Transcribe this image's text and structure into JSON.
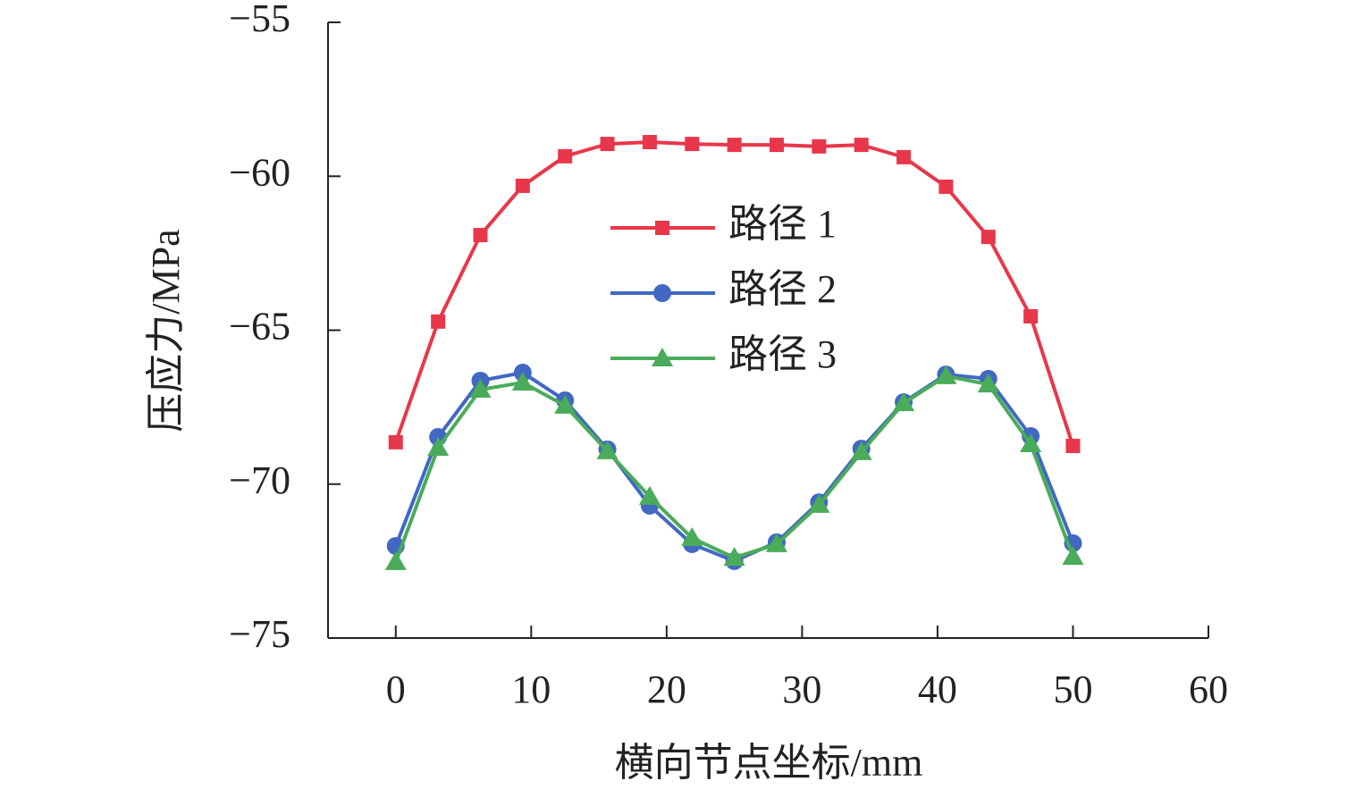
{
  "chart_data": {
    "type": "line",
    "x_label": "横向节点坐标/mm",
    "y_label": "压应力/MPa",
    "x": [
      0,
      3.125,
      6.25,
      9.375,
      12.5,
      15.625,
      18.75,
      21.875,
      25,
      28.125,
      31.25,
      34.375,
      37.5,
      40.625,
      43.75,
      46.875,
      50
    ],
    "series": [
      {
        "name": "路径 1",
        "color": "#e8374a",
        "marker": "square",
        "values": [
          -68.64,
          -64.72,
          -61.91,
          -60.31,
          -59.35,
          -58.95,
          -58.89,
          -58.95,
          -58.98,
          -58.98,
          -59.03,
          -58.98,
          -59.38,
          -60.34,
          -61.97,
          -64.55,
          -68.76
        ]
      },
      {
        "name": "路径 2",
        "color": "#4169c4",
        "marker": "circle",
        "values": [
          -72.01,
          -68.47,
          -66.64,
          -66.38,
          -67.28,
          -68.87,
          -70.7,
          -71.95,
          -72.5,
          -71.89,
          -70.59,
          -68.85,
          -67.34,
          -66.44,
          -66.58,
          -68.44,
          -71.92
        ]
      },
      {
        "name": "路径 3",
        "color": "#4aab5a",
        "marker": "triangle",
        "values": [
          -72.53,
          -68.82,
          -66.93,
          -66.7,
          -67.45,
          -68.93,
          -70.41,
          -71.75,
          -72.39,
          -71.95,
          -70.67,
          -68.96,
          -67.37,
          -66.49,
          -66.76,
          -68.7,
          -72.36
        ]
      }
    ],
    "xlim": [
      -5,
      60
    ],
    "xticks": [
      0,
      10,
      20,
      30,
      40,
      50,
      60
    ],
    "ylim": [
      -75,
      -55
    ],
    "yticks": [
      {
        "value": -75,
        "label": "−75"
      },
      {
        "value": -70,
        "label": "−70"
      },
      {
        "value": -65,
        "label": "−65"
      },
      {
        "value": -60,
        "label": "−60"
      },
      {
        "value": -55,
        "label": "−55"
      }
    ],
    "grid": false,
    "legend": "center"
  }
}
